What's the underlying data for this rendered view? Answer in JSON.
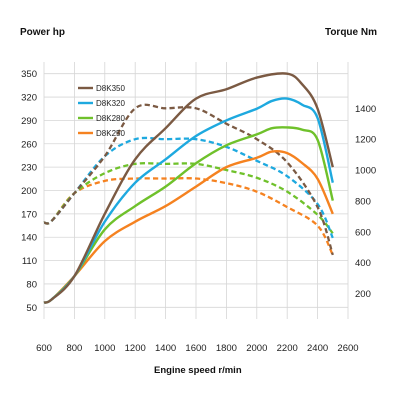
{
  "chart_data": {
    "type": "line",
    "title_left": "Power hp",
    "title_right": "Torque Nm",
    "xlabel": "Engine speed r/min",
    "xlim": [
      600,
      2600
    ],
    "ylim_left": [
      35,
      365
    ],
    "ylim_right": [
      35,
      1700
    ],
    "x_ticks": [
      600,
      800,
      1000,
      1200,
      1400,
      1600,
      1800,
      2000,
      2200,
      2400,
      2600
    ],
    "left_ticks": [
      50,
      80,
      110,
      140,
      170,
      200,
      230,
      260,
      290,
      320,
      350
    ],
    "right_ticks": [
      200,
      400,
      600,
      800,
      1000,
      1200,
      1400
    ],
    "grid": true,
    "legend": {
      "position": "top-left",
      "items": [
        "D8K350",
        "D8K320",
        "D8K280",
        "D8K250"
      ]
    },
    "colors": {
      "D8K350": "#7b5a43",
      "D8K320": "#1ea9df",
      "D8K280": "#6fc12b",
      "D8K250": "#f58220",
      "grid": "#d6d6d6",
      "background": "#ffffff"
    },
    "series": [
      {
        "name": "D8K350",
        "kind": "power",
        "axis": "left",
        "line_style": "solid",
        "x": [
          600,
          650,
          800,
          1000,
          1200,
          1400,
          1600,
          1800,
          2000,
          2200,
          2300,
          2400,
          2500
        ],
        "y": [
          56,
          60,
          90,
          170,
          240,
          280,
          318,
          330,
          345,
          350,
          336,
          305,
          230
        ]
      },
      {
        "name": "D8K320",
        "kind": "power",
        "axis": "left",
        "line_style": "solid",
        "x": [
          600,
          650,
          800,
          1000,
          1200,
          1400,
          1600,
          1800,
          2000,
          2100,
          2200,
          2300,
          2400,
          2500
        ],
        "y": [
          56,
          60,
          90,
          160,
          210,
          240,
          270,
          290,
          305,
          315,
          318,
          310,
          293,
          210
        ]
      },
      {
        "name": "D8K280",
        "kind": "power",
        "axis": "left",
        "line_style": "solid",
        "x": [
          600,
          650,
          800,
          1000,
          1200,
          1400,
          1600,
          1800,
          2000,
          2100,
          2200,
          2300,
          2400,
          2500
        ],
        "y": [
          56,
          60,
          90,
          150,
          180,
          205,
          235,
          258,
          272,
          280,
          281,
          278,
          265,
          187
        ]
      },
      {
        "name": "D8K250",
        "kind": "power",
        "axis": "left",
        "line_style": "solid",
        "x": [
          600,
          650,
          800,
          1000,
          1200,
          1400,
          1600,
          1800,
          2000,
          2100,
          2200,
          2300,
          2400,
          2500
        ],
        "y": [
          56,
          60,
          90,
          135,
          160,
          180,
          205,
          230,
          242,
          250,
          248,
          235,
          215,
          170
        ]
      },
      {
        "name": "D8K350",
        "kind": "torque",
        "axis": "right",
        "line_style": "dashed",
        "x": [
          600,
          650,
          800,
          1000,
          1200,
          1400,
          1600,
          1800,
          2000,
          2200,
          2400,
          2500
        ],
        "y": [
          660,
          670,
          850,
          1090,
          1400,
          1400,
          1400,
          1300,
          1200,
          1050,
          760,
          450
        ]
      },
      {
        "name": "D8K320",
        "kind": "torque",
        "axis": "right",
        "line_style": "dashed",
        "x": [
          600,
          650,
          800,
          1000,
          1200,
          1400,
          1600,
          1800,
          2000,
          2200,
          2400,
          2500
        ],
        "y": [
          660,
          670,
          850,
          1090,
          1200,
          1200,
          1200,
          1150,
          1060,
          960,
          780,
          560
        ]
      },
      {
        "name": "D8K280",
        "kind": "torque",
        "axis": "right",
        "line_style": "dashed",
        "x": [
          600,
          650,
          800,
          1000,
          1200,
          1400,
          1600,
          1800,
          2000,
          2200,
          2400,
          2500
        ],
        "y": [
          660,
          670,
          850,
          980,
          1040,
          1040,
          1040,
          1000,
          950,
          860,
          710,
          590
        ]
      },
      {
        "name": "D8K250",
        "kind": "torque",
        "axis": "right",
        "line_style": "dashed",
        "x": [
          600,
          650,
          800,
          1000,
          1200,
          1400,
          1600,
          1800,
          2000,
          2200,
          2400,
          2500
        ],
        "y": [
          660,
          670,
          850,
          930,
          945,
          945,
          945,
          915,
          860,
          760,
          640,
          450
        ]
      }
    ]
  }
}
